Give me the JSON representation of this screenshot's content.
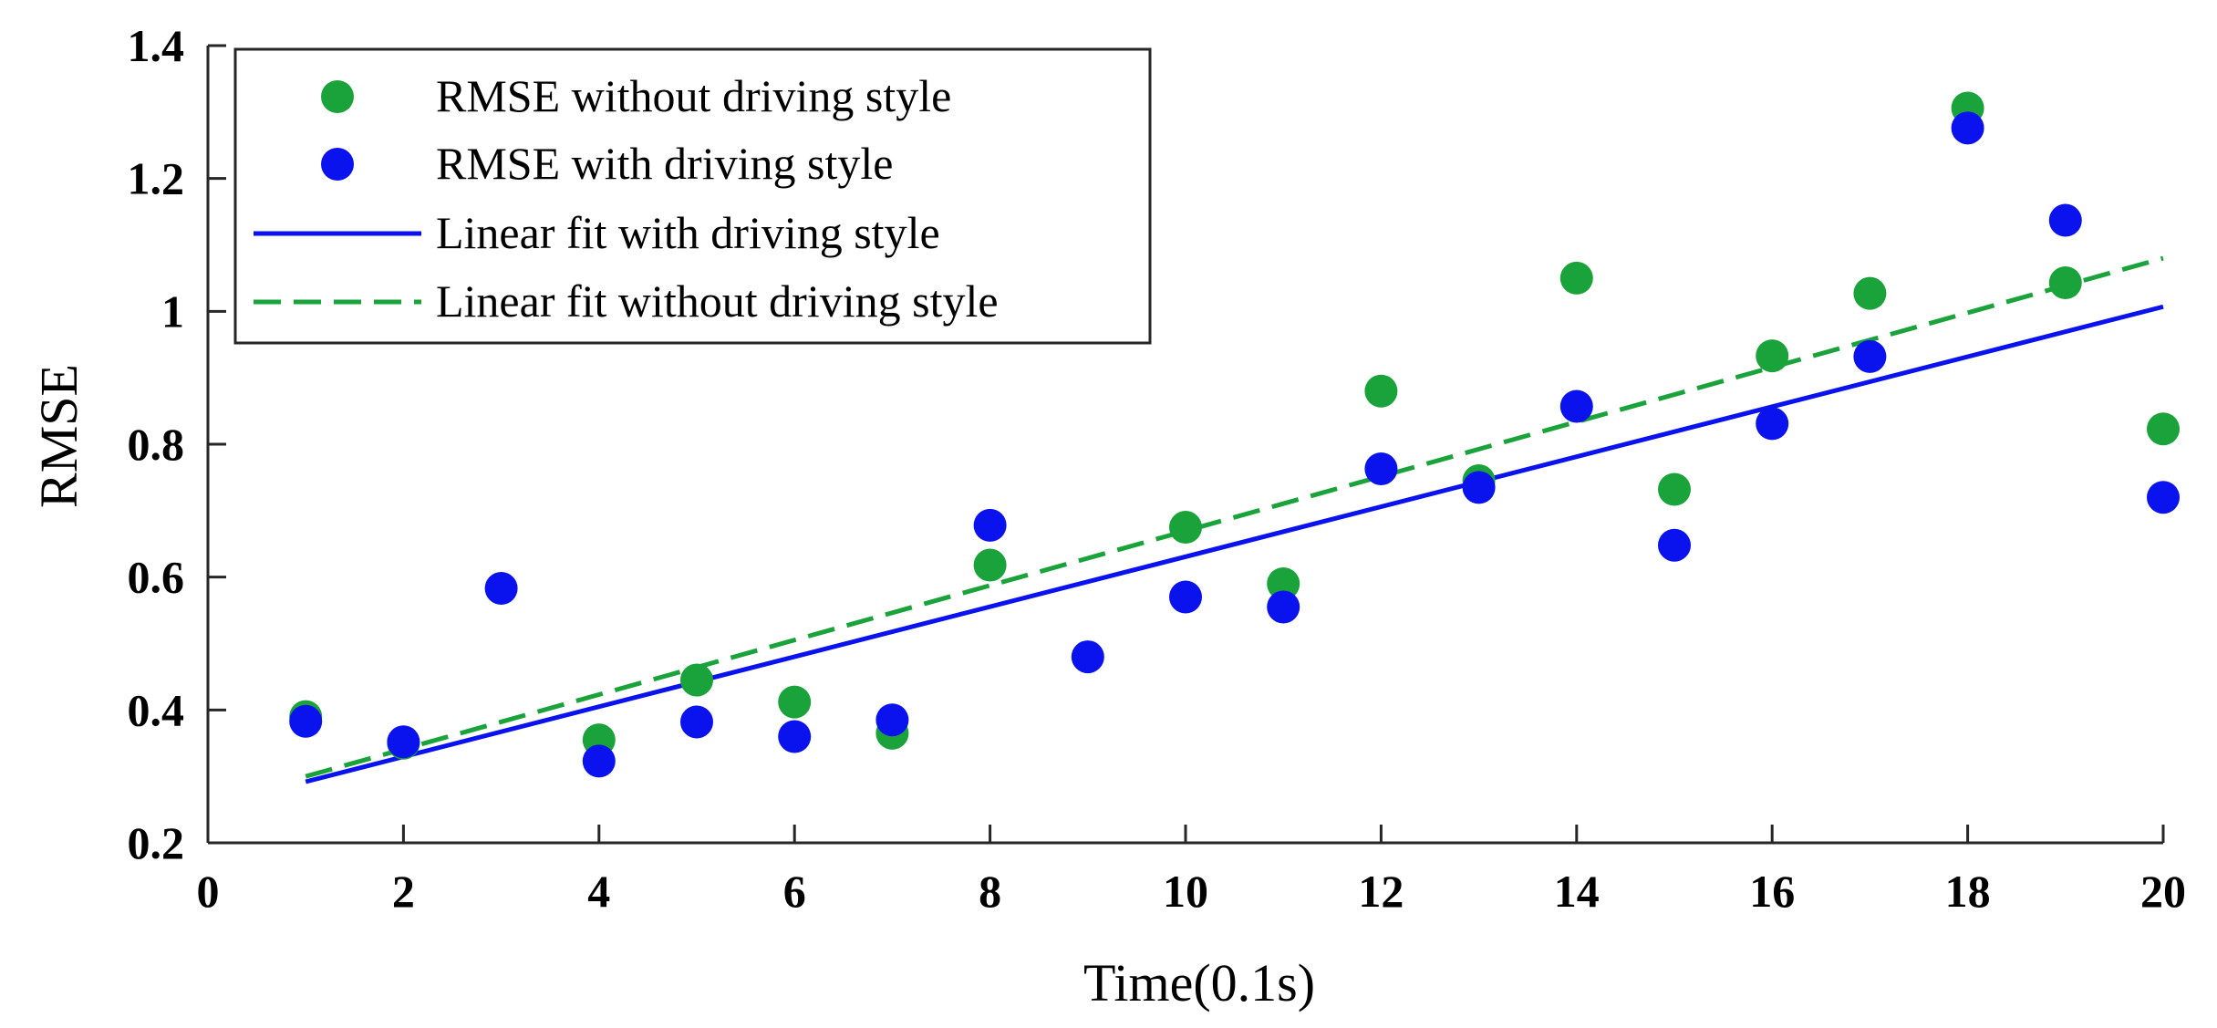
{
  "chart_data": {
    "type": "scatter",
    "title": "",
    "xlabel": "Time(0.1s)",
    "ylabel": "RMSE",
    "xlim": [
      0,
      20
    ],
    "ylim": [
      0.2,
      1.4
    ],
    "xticks": [
      0,
      2,
      4,
      6,
      8,
      10,
      12,
      14,
      16,
      18,
      20
    ],
    "yticks": [
      0.2,
      0.4,
      0.6,
      0.8,
      1,
      1.2,
      1.4
    ],
    "xtick_labels": [
      "0",
      "2",
      "4",
      "6",
      "8",
      "10",
      "12",
      "14",
      "16",
      "18",
      "20"
    ],
    "ytick_labels": [
      "0.2",
      "0.4",
      "0.6",
      "0.8",
      "1",
      "1.2",
      "1.4"
    ],
    "grid": false,
    "legend_position": "top-left",
    "series": [
      {
        "name": "RMSE without driving style",
        "kind": "scatter",
        "color": "#1aa33a",
        "points": [
          [
            1,
            0.39
          ],
          [
            2,
            0.35
          ],
          [
            4,
            0.355
          ],
          [
            5,
            0.445
          ],
          [
            6,
            0.412
          ],
          [
            7,
            0.365
          ],
          [
            8,
            0.618
          ],
          [
            10,
            0.675
          ],
          [
            11,
            0.59
          ],
          [
            12,
            0.88
          ],
          [
            13,
            0.745
          ],
          [
            14,
            1.05
          ],
          [
            15,
            0.732
          ],
          [
            16,
            0.933
          ],
          [
            17,
            1.027
          ],
          [
            18,
            1.306
          ],
          [
            19,
            1.043
          ],
          [
            20,
            0.823
          ]
        ]
      },
      {
        "name": "RMSE with driving style",
        "kind": "scatter",
        "color": "#0a12ee",
        "points": [
          [
            1,
            0.383
          ],
          [
            2,
            0.352
          ],
          [
            3,
            0.583
          ],
          [
            4,
            0.323
          ],
          [
            5,
            0.382
          ],
          [
            6,
            0.36
          ],
          [
            7,
            0.385
          ],
          [
            8,
            0.678
          ],
          [
            9,
            0.48
          ],
          [
            10,
            0.57
          ],
          [
            11,
            0.555
          ],
          [
            12,
            0.763
          ],
          [
            13,
            0.735
          ],
          [
            14,
            0.857
          ],
          [
            15,
            0.648
          ],
          [
            16,
            0.831
          ],
          [
            17,
            0.932
          ],
          [
            18,
            1.276
          ],
          [
            19,
            1.137
          ],
          [
            20,
            0.72
          ]
        ]
      },
      {
        "name": "Linear fit with driving style",
        "kind": "line",
        "style": "solid",
        "color": "#0a12ee",
        "x": [
          1,
          20
        ],
        "y": [
          0.292,
          1.007
        ]
      },
      {
        "name": "Linear fit without driving style",
        "kind": "line",
        "style": "dashed",
        "color": "#1aa33a",
        "x": [
          1,
          20
        ],
        "y": [
          0.3,
          1.08
        ]
      }
    ]
  }
}
